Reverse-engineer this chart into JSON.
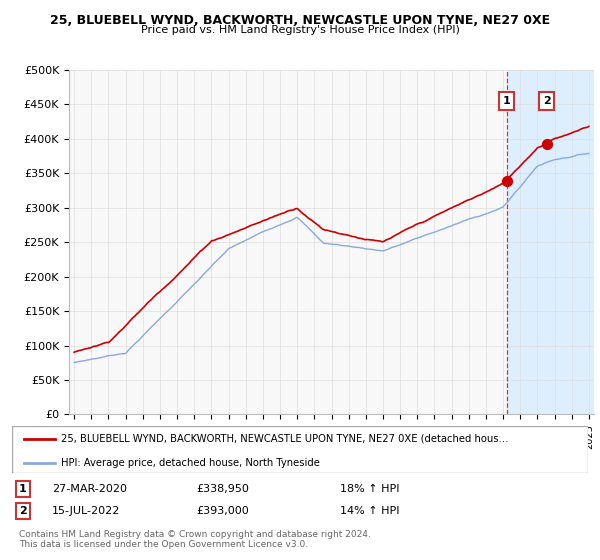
{
  "title1": "25, BLUEBELL WYND, BACKWORTH, NEWCASTLE UPON TYNE, NE27 0XE",
  "title2": "Price paid vs. HM Land Registry's House Price Index (HPI)",
  "ylabel_ticks": [
    "£0",
    "£50K",
    "£100K",
    "£150K",
    "£200K",
    "£250K",
    "£300K",
    "£350K",
    "£400K",
    "£450K",
    "£500K"
  ],
  "ytick_values": [
    0,
    50000,
    100000,
    150000,
    200000,
    250000,
    300000,
    350000,
    400000,
    450000,
    500000
  ],
  "xlim_start": 1994.7,
  "xlim_end": 2025.3,
  "ylim_top": 500000,
  "sale1_date": "27-MAR-2020",
  "sale1_price": 338950,
  "sale1_label": "1",
  "sale1_year": 2020.22,
  "sale2_date": "15-JUL-2022",
  "sale2_price": 393000,
  "sale2_label": "2",
  "sale2_year": 2022.54,
  "legend_line1": "25, BLUEBELL WYND, BACKWORTH, NEWCASTLE UPON TYNE, NE27 0XE (detached hous…",
  "legend_line2": "HPI: Average price, detached house, North Tyneside",
  "footer1": "Contains HM Land Registry data © Crown copyright and database right 2024.",
  "footer2": "This data is licensed under the Open Government Licence v3.0.",
  "house_color": "#cc0000",
  "hpi_color": "#88aadd",
  "highlight_color": "#ddeeff",
  "dashed_color": "#dd3333",
  "grid_color": "#dddddd",
  "bg_color": "#f8f8f8"
}
